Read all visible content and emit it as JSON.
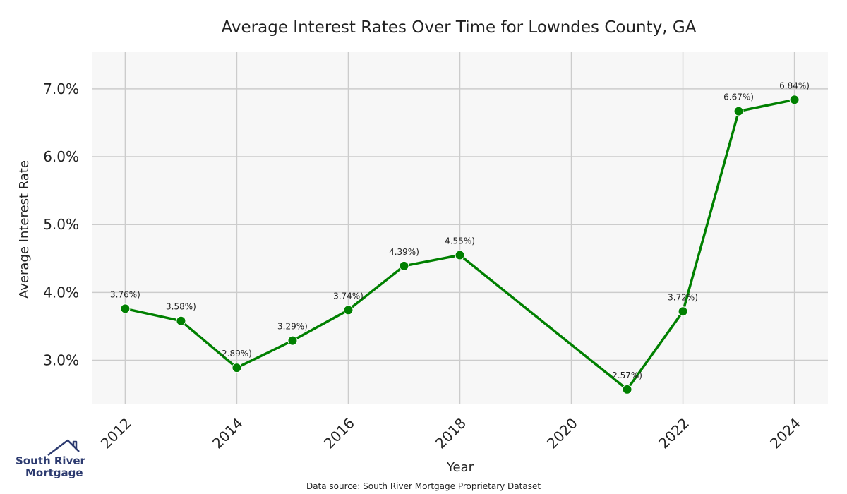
{
  "colors": {
    "line": "#008000",
    "plot_bg": "#f7f7f7",
    "grid": "#cccccc",
    "logo": "#2d3b70"
  },
  "chart_data": {
    "type": "line",
    "title": "Average Interest Rates Over Time for Lowndes County, GA",
    "xlabel": "Year",
    "ylabel": "Average Interest Rate",
    "x": [
      2012,
      2013,
      2014,
      2015,
      2016,
      2017,
      2018,
      2021,
      2022,
      2023,
      2024
    ],
    "y": [
      3.76,
      3.58,
      2.89,
      3.29,
      3.74,
      4.39,
      4.55,
      2.57,
      3.72,
      6.67,
      6.84
    ],
    "data_labels": [
      "3.76%)",
      "3.58%)",
      "2.89%)",
      "3.29%)",
      "3.74%)",
      "4.39%)",
      "4.55%)",
      "2.57%)",
      "3.72%)",
      "6.67%)",
      "6.84%)"
    ],
    "xticks": [
      2012,
      2014,
      2016,
      2018,
      2020,
      2022,
      2024
    ],
    "yticks": [
      3.0,
      4.0,
      5.0,
      6.0,
      7.0
    ],
    "ytick_labels": [
      "3.0%",
      "4.0%",
      "5.0%",
      "6.0%",
      "7.0%"
    ],
    "xlim": [
      2011.4,
      2024.6
    ],
    "ylim": [
      2.35,
      7.55
    ],
    "grid": true,
    "markers": true
  },
  "footer": {
    "source": "Data source: South River Mortgage Proprietary Dataset"
  },
  "logo": {
    "line1": "South River",
    "line2": "Mortgage"
  }
}
